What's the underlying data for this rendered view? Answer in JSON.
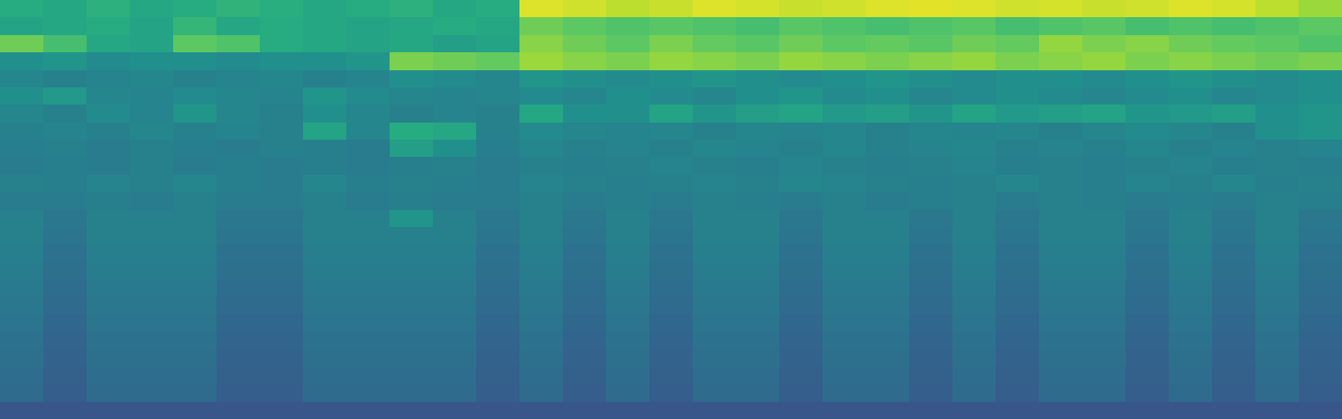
{
  "chart_data": {
    "type": "heatmap",
    "tick_labels": false,
    "zlim": [
      0,
      1
    ],
    "cells": [
      [
        0.62,
        0.6,
        0.64,
        0.6,
        0.62,
        0.65,
        0.63,
        0.6,
        0.62,
        0.64,
        0.6,
        0.62,
        0.95,
        0.93,
        0.9,
        0.92,
        0.95,
        0.94,
        0.92,
        0.93,
        0.95,
        0.96,
        0.95,
        0.93,
        0.94,
        0.92,
        0.93,
        0.95,
        0.94,
        0.9,
        0.85
      ],
      [
        0.58,
        0.6,
        0.62,
        0.58,
        0.66,
        0.6,
        0.62,
        0.6,
        0.58,
        0.6,
        0.62,
        0.6,
        0.78,
        0.75,
        0.72,
        0.74,
        0.72,
        0.7,
        0.74,
        0.72,
        0.7,
        0.72,
        0.74,
        0.7,
        0.72,
        0.74,
        0.7,
        0.72,
        0.7,
        0.72,
        0.75
      ],
      [
        0.78,
        0.7,
        0.6,
        0.58,
        0.75,
        0.72,
        0.62,
        0.6,
        0.58,
        0.6,
        0.56,
        0.58,
        0.82,
        0.78,
        0.75,
        0.8,
        0.76,
        0.74,
        0.78,
        0.75,
        0.76,
        0.74,
        0.78,
        0.76,
        0.84,
        0.8,
        0.82,
        0.78,
        0.76,
        0.75,
        0.72
      ],
      [
        0.5,
        0.52,
        0.48,
        0.5,
        0.5,
        0.48,
        0.5,
        0.5,
        0.52,
        0.8,
        0.78,
        0.76,
        0.85,
        0.82,
        0.8,
        0.84,
        0.82,
        0.8,
        0.84,
        0.82,
        0.8,
        0.82,
        0.84,
        0.8,
        0.82,
        0.84,
        0.8,
        0.82,
        0.8,
        0.78,
        0.8
      ],
      [
        0.46,
        0.44,
        0.45,
        0.46,
        0.44,
        0.45,
        0.46,
        0.44,
        0.45,
        0.5,
        0.48,
        0.46,
        0.52,
        0.5,
        0.48,
        0.5,
        0.52,
        0.5,
        0.48,
        0.5,
        0.52,
        0.5,
        0.48,
        0.5,
        0.5,
        0.48,
        0.5,
        0.52,
        0.5,
        0.48,
        0.5
      ],
      [
        0.5,
        0.54,
        0.46,
        0.45,
        0.48,
        0.46,
        0.45,
        0.52,
        0.48,
        0.46,
        0.45,
        0.46,
        0.48,
        0.46,
        0.5,
        0.48,
        0.46,
        0.5,
        0.52,
        0.48,
        0.5,
        0.46,
        0.48,
        0.5,
        0.48,
        0.46,
        0.48,
        0.5,
        0.46,
        0.48,
        0.5
      ],
      [
        0.46,
        0.44,
        0.48,
        0.45,
        0.52,
        0.46,
        0.44,
        0.5,
        0.46,
        0.44,
        0.45,
        0.44,
        0.6,
        0.5,
        0.5,
        0.58,
        0.52,
        0.56,
        0.58,
        0.54,
        0.56,
        0.52,
        0.58,
        0.54,
        0.56,
        0.58,
        0.52,
        0.54,
        0.56,
        0.5,
        0.52
      ],
      [
        0.44,
        0.45,
        0.44,
        0.46,
        0.44,
        0.45,
        0.44,
        0.58,
        0.46,
        0.62,
        0.6,
        0.44,
        0.48,
        0.46,
        0.45,
        0.46,
        0.44,
        0.46,
        0.45,
        0.46,
        0.44,
        0.46,
        0.45,
        0.46,
        0.44,
        0.46,
        0.48,
        0.46,
        0.44,
        0.5,
        0.52
      ],
      [
        0.43,
        0.44,
        0.42,
        0.44,
        0.43,
        0.42,
        0.44,
        0.43,
        0.42,
        0.56,
        0.5,
        0.43,
        0.46,
        0.44,
        0.45,
        0.44,
        0.46,
        0.45,
        0.44,
        0.46,
        0.44,
        0.45,
        0.46,
        0.44,
        0.45,
        0.44,
        0.46,
        0.44,
        0.45,
        0.44,
        0.45
      ],
      [
        0.42,
        0.43,
        0.42,
        0.44,
        0.42,
        0.43,
        0.42,
        0.43,
        0.42,
        0.43,
        0.44,
        0.42,
        0.44,
        0.43,
        0.44,
        0.45,
        0.44,
        0.43,
        0.45,
        0.44,
        0.43,
        0.44,
        0.45,
        0.43,
        0.44,
        0.43,
        0.44,
        0.45,
        0.43,
        0.44,
        0.43
      ],
      [
        0.44,
        0.43,
        0.45,
        0.44,
        0.46,
        0.43,
        0.42,
        0.46,
        0.43,
        0.44,
        0.43,
        0.42,
        0.45,
        0.44,
        0.43,
        0.44,
        0.45,
        0.44,
        0.46,
        0.45,
        0.44,
        0.43,
        0.44,
        0.46,
        0.44,
        0.43,
        0.45,
        0.44,
        0.46,
        0.43,
        0.44
      ],
      [
        0.42,
        0.42,
        0.43,
        0.42,
        0.44,
        0.42,
        0.42,
        0.44,
        0.42,
        0.43,
        0.42,
        0.42,
        0.44,
        0.42,
        0.43,
        0.42,
        0.44,
        0.43,
        0.42,
        0.44,
        0.42,
        0.43,
        0.44,
        0.42,
        0.44,
        0.43,
        0.42,
        0.43,
        0.42,
        0.44,
        0.43
      ],
      [
        0.44,
        0.4,
        0.44,
        0.44,
        0.44,
        0.4,
        0.4,
        0.44,
        0.44,
        0.52,
        0.44,
        0.4,
        0.44,
        0.4,
        0.44,
        0.4,
        0.44,
        0.44,
        0.4,
        0.44,
        0.44,
        0.4,
        0.44,
        0.4,
        0.44,
        0.44,
        0.4,
        0.44,
        0.4,
        0.44,
        0.4
      ],
      [
        0.44,
        0.39,
        0.44,
        0.44,
        0.44,
        0.39,
        0.39,
        0.44,
        0.44,
        0.44,
        0.44,
        0.39,
        0.44,
        0.39,
        0.44,
        0.39,
        0.44,
        0.44,
        0.39,
        0.44,
        0.44,
        0.39,
        0.44,
        0.39,
        0.44,
        0.44,
        0.39,
        0.44,
        0.39,
        0.44,
        0.39
      ],
      [
        0.43,
        0.38,
        0.43,
        0.43,
        0.43,
        0.38,
        0.38,
        0.43,
        0.43,
        0.43,
        0.43,
        0.38,
        0.43,
        0.38,
        0.43,
        0.38,
        0.43,
        0.43,
        0.38,
        0.43,
        0.43,
        0.38,
        0.43,
        0.38,
        0.43,
        0.43,
        0.38,
        0.43,
        0.38,
        0.43,
        0.38
      ],
      [
        0.42,
        0.37,
        0.42,
        0.42,
        0.42,
        0.37,
        0.37,
        0.42,
        0.42,
        0.42,
        0.42,
        0.37,
        0.42,
        0.37,
        0.42,
        0.37,
        0.42,
        0.42,
        0.37,
        0.42,
        0.42,
        0.37,
        0.42,
        0.37,
        0.42,
        0.42,
        0.37,
        0.42,
        0.37,
        0.42,
        0.37
      ],
      [
        0.41,
        0.36,
        0.41,
        0.41,
        0.41,
        0.36,
        0.36,
        0.41,
        0.41,
        0.41,
        0.41,
        0.36,
        0.41,
        0.36,
        0.41,
        0.36,
        0.41,
        0.41,
        0.36,
        0.41,
        0.41,
        0.36,
        0.41,
        0.36,
        0.41,
        0.41,
        0.36,
        0.41,
        0.36,
        0.41,
        0.36
      ],
      [
        0.4,
        0.35,
        0.4,
        0.4,
        0.4,
        0.35,
        0.35,
        0.4,
        0.4,
        0.4,
        0.4,
        0.35,
        0.4,
        0.35,
        0.4,
        0.35,
        0.4,
        0.4,
        0.35,
        0.4,
        0.4,
        0.35,
        0.4,
        0.35,
        0.4,
        0.4,
        0.35,
        0.4,
        0.35,
        0.4,
        0.35
      ],
      [
        0.39,
        0.34,
        0.39,
        0.39,
        0.39,
        0.34,
        0.34,
        0.39,
        0.39,
        0.39,
        0.39,
        0.34,
        0.39,
        0.34,
        0.39,
        0.34,
        0.39,
        0.39,
        0.34,
        0.39,
        0.39,
        0.34,
        0.39,
        0.34,
        0.39,
        0.39,
        0.34,
        0.39,
        0.34,
        0.39,
        0.34
      ],
      [
        0.38,
        0.33,
        0.38,
        0.38,
        0.38,
        0.33,
        0.33,
        0.38,
        0.38,
        0.38,
        0.38,
        0.33,
        0.38,
        0.33,
        0.38,
        0.33,
        0.38,
        0.38,
        0.33,
        0.38,
        0.38,
        0.33,
        0.38,
        0.33,
        0.38,
        0.38,
        0.33,
        0.38,
        0.33,
        0.38,
        0.33
      ],
      [
        0.37,
        0.32,
        0.37,
        0.37,
        0.37,
        0.32,
        0.32,
        0.37,
        0.37,
        0.37,
        0.37,
        0.32,
        0.37,
        0.32,
        0.37,
        0.32,
        0.37,
        0.37,
        0.32,
        0.37,
        0.37,
        0.32,
        0.37,
        0.32,
        0.37,
        0.37,
        0.32,
        0.37,
        0.32,
        0.37,
        0.32
      ],
      [
        0.36,
        0.31,
        0.36,
        0.36,
        0.36,
        0.31,
        0.31,
        0.36,
        0.36,
        0.36,
        0.36,
        0.31,
        0.36,
        0.31,
        0.36,
        0.31,
        0.36,
        0.36,
        0.31,
        0.36,
        0.36,
        0.31,
        0.36,
        0.31,
        0.36,
        0.36,
        0.31,
        0.36,
        0.31,
        0.36,
        0.31
      ],
      [
        0.35,
        0.3,
        0.35,
        0.35,
        0.35,
        0.3,
        0.3,
        0.35,
        0.35,
        0.35,
        0.35,
        0.3,
        0.35,
        0.3,
        0.35,
        0.3,
        0.35,
        0.35,
        0.3,
        0.35,
        0.35,
        0.3,
        0.35,
        0.3,
        0.35,
        0.35,
        0.3,
        0.35,
        0.3,
        0.35,
        0.3
      ],
      [
        0.27,
        0.27,
        0.27,
        0.27,
        0.27,
        0.27,
        0.27,
        0.27,
        0.27,
        0.27,
        0.27,
        0.27,
        0.27,
        0.27,
        0.27,
        0.27,
        0.27,
        0.27,
        0.27,
        0.27,
        0.27,
        0.27,
        0.27,
        0.27,
        0.27,
        0.27,
        0.27,
        0.27,
        0.27,
        0.27,
        0.27
      ]
    ]
  }
}
